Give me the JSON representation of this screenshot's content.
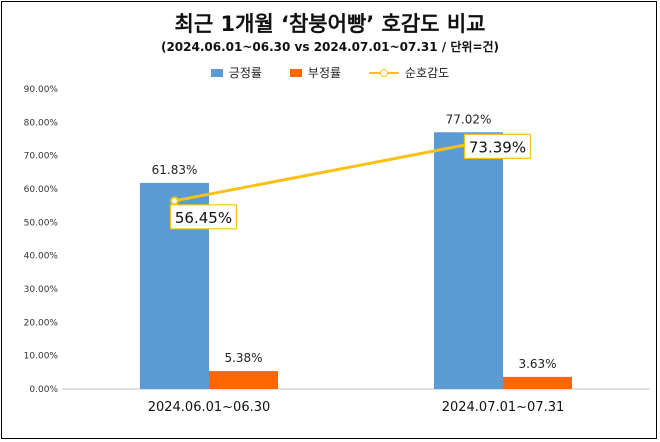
{
  "title": "최근 1개월 ‘참붕어빵’ 호감도 비교",
  "subtitle": "(2024.06.01~06.30 vs 2024.07.01~07.31 / 단위=건)",
  "colors": {
    "positive": "#5B9BD5",
    "negative": "#FF6600",
    "favorability": "#F9C116"
  },
  "chart_data": {
    "type": "bar",
    "categories": [
      "2024.06.01~06.30",
      "2024.07.01~07.31"
    ],
    "series": [
      {
        "name": "긍정률",
        "type": "bar",
        "values": [
          61.83,
          77.02
        ],
        "labels": [
          "61.83%",
          "77.02%"
        ]
      },
      {
        "name": "부정률",
        "type": "bar",
        "values": [
          5.38,
          3.63
        ],
        "labels": [
          "5.38%",
          "3.63%"
        ]
      },
      {
        "name": "순호감도",
        "type": "line",
        "values": [
          56.45,
          73.39
        ],
        "labels": [
          "56.45%",
          "73.39%"
        ]
      }
    ],
    "ylim": [
      0,
      90
    ],
    "yticks": [
      "0.00%",
      "10.00%",
      "20.00%",
      "30.00%",
      "40.00%",
      "50.00%",
      "60.00%",
      "70.00%",
      "80.00%",
      "90.00%"
    ],
    "legend": "top",
    "grid": false
  }
}
